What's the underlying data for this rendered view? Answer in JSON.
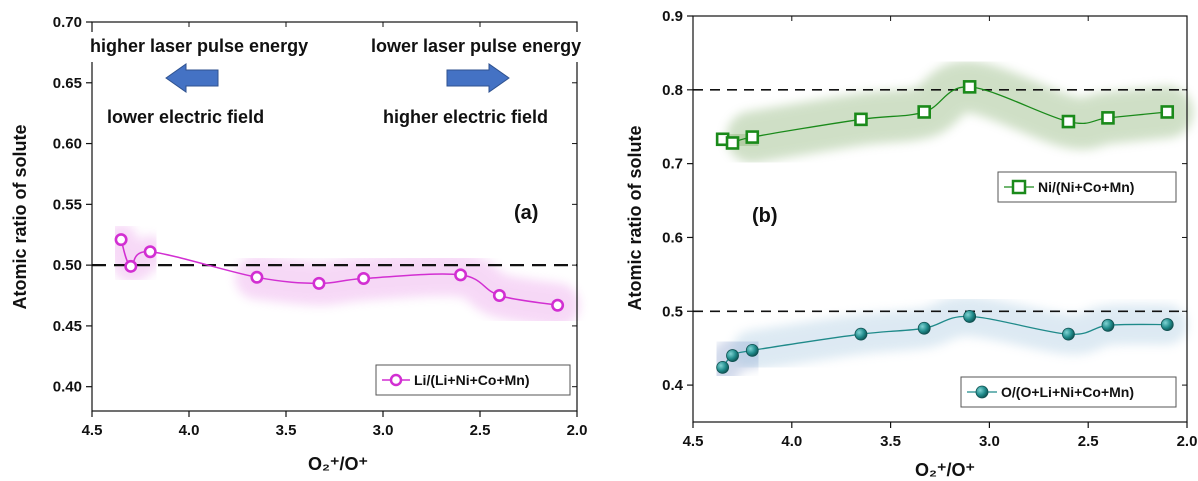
{
  "chart_data": [
    {
      "type": "scatter",
      "panel_label": "(a)",
      "xlabel": "O₂⁺/O⁺",
      "ylabel": "Atomic ratio of solute",
      "xlim": [
        4.5,
        2.0
      ],
      "ylim": [
        0.38,
        0.7
      ],
      "xticks": [
        "4.5",
        "4.0",
        "3.5",
        "3.0",
        "2.5",
        "2.0"
      ],
      "yticks": [
        "0.40",
        "0.45",
        "0.50",
        "0.55",
        "0.60",
        "0.65",
        "0.70"
      ],
      "reference_line": 0.5,
      "series": [
        {
          "name": "Li/(Li+Ni+Co+Mn)",
          "color": "#d22fd2",
          "marker": "open-circle",
          "x": [
            4.35,
            4.3,
            4.2,
            3.65,
            3.33,
            3.1,
            2.6,
            2.4,
            2.1
          ],
          "y": [
            0.521,
            0.499,
            0.511,
            0.49,
            0.485,
            0.489,
            0.492,
            0.475,
            0.467
          ]
        }
      ],
      "annotations": {
        "left_top": "higher laser pulse energy",
        "left_bottom": "lower electric field",
        "right_top": "lower laser pulse energy",
        "right_bottom": "higher electric field"
      },
      "arrow_color": "#4472c4",
      "legend_position": "bottom-right"
    },
    {
      "type": "scatter",
      "panel_label": "(b)",
      "xlabel": "O₂⁺/O⁺",
      "ylabel": "Atomic ratio of solute",
      "xlim": [
        4.5,
        2.0
      ],
      "ylim": [
        0.35,
        0.9
      ],
      "xticks": [
        "4.5",
        "4.0",
        "3.5",
        "3.0",
        "2.5",
        "2.0"
      ],
      "yticks": [
        "0.4",
        "0.5",
        "0.6",
        "0.7",
        "0.8",
        "0.9"
      ],
      "reference_lines": [
        0.8,
        0.5
      ],
      "series": [
        {
          "name": "Ni/(Ni+Co+Mn)",
          "color": "#1a8a1a",
          "marker": "open-square",
          "x": [
            4.35,
            4.3,
            4.2,
            3.65,
            3.33,
            3.1,
            2.6,
            2.4,
            2.1
          ],
          "y": [
            0.733,
            0.728,
            0.736,
            0.76,
            0.77,
            0.804,
            0.757,
            0.762,
            0.77
          ]
        },
        {
          "name": "O/(O+Li+Ni+Co+Mn)",
          "color": "#1f8a8a",
          "marker": "filled-circle",
          "x": [
            4.35,
            4.3,
            4.2,
            3.65,
            3.33,
            3.1,
            2.6,
            2.4,
            2.1
          ],
          "y": [
            0.424,
            0.44,
            0.447,
            0.469,
            0.477,
            0.493,
            0.469,
            0.481,
            0.482
          ]
        }
      ],
      "legend_position": "right"
    }
  ]
}
